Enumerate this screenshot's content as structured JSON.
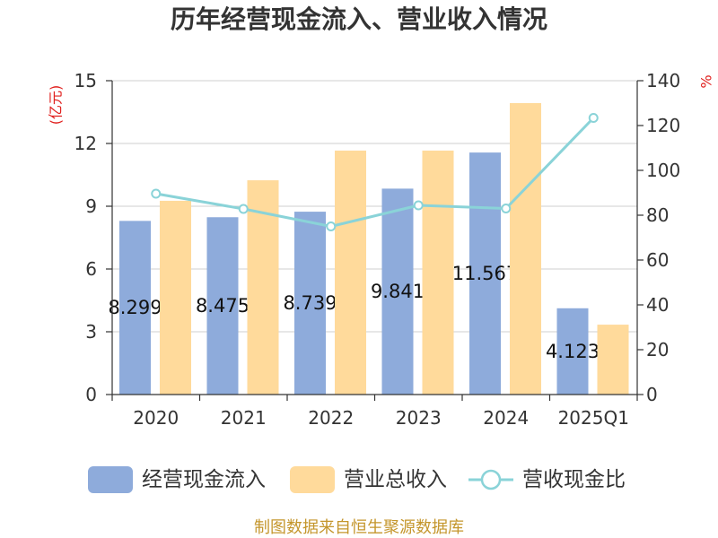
{
  "chart_data": {
    "type": "bar",
    "title": "历年经营现金流入、营业收入情况",
    "categories": [
      "2020",
      "2021",
      "2022",
      "2023",
      "2024",
      "2025Q1"
    ],
    "ylabel": "(亿元)",
    "y2label": "%",
    "ylim": [
      0,
      15
    ],
    "yticks": [
      0,
      3,
      6,
      9,
      12,
      15
    ],
    "y2lim": [
      0,
      140
    ],
    "y2ticks": [
      0,
      20,
      40,
      60,
      80,
      100,
      120,
      140
    ],
    "grid": true,
    "legend": "bottom",
    "series": [
      {
        "name": "经营现金流入",
        "type": "bar",
        "axis": "left",
        "color": "#8eabdb",
        "values": [
          8.299,
          8.475,
          8.739,
          9.841,
          11.567,
          4.123
        ],
        "data_labels": true
      },
      {
        "name": "营业总收入",
        "type": "bar",
        "axis": "left",
        "color": "#ffda9b",
        "values": [
          9.26,
          10.24,
          11.66,
          11.66,
          13.93,
          3.34
        ]
      },
      {
        "name": "营收现金比",
        "type": "line",
        "axis": "right",
        "color": "#8ad3d8",
        "values": [
          89.6,
          82.8,
          75.0,
          84.4,
          83.0,
          123.4
        ]
      }
    ]
  },
  "footer": {
    "source": "制图数据来自恒生聚源数据库"
  }
}
